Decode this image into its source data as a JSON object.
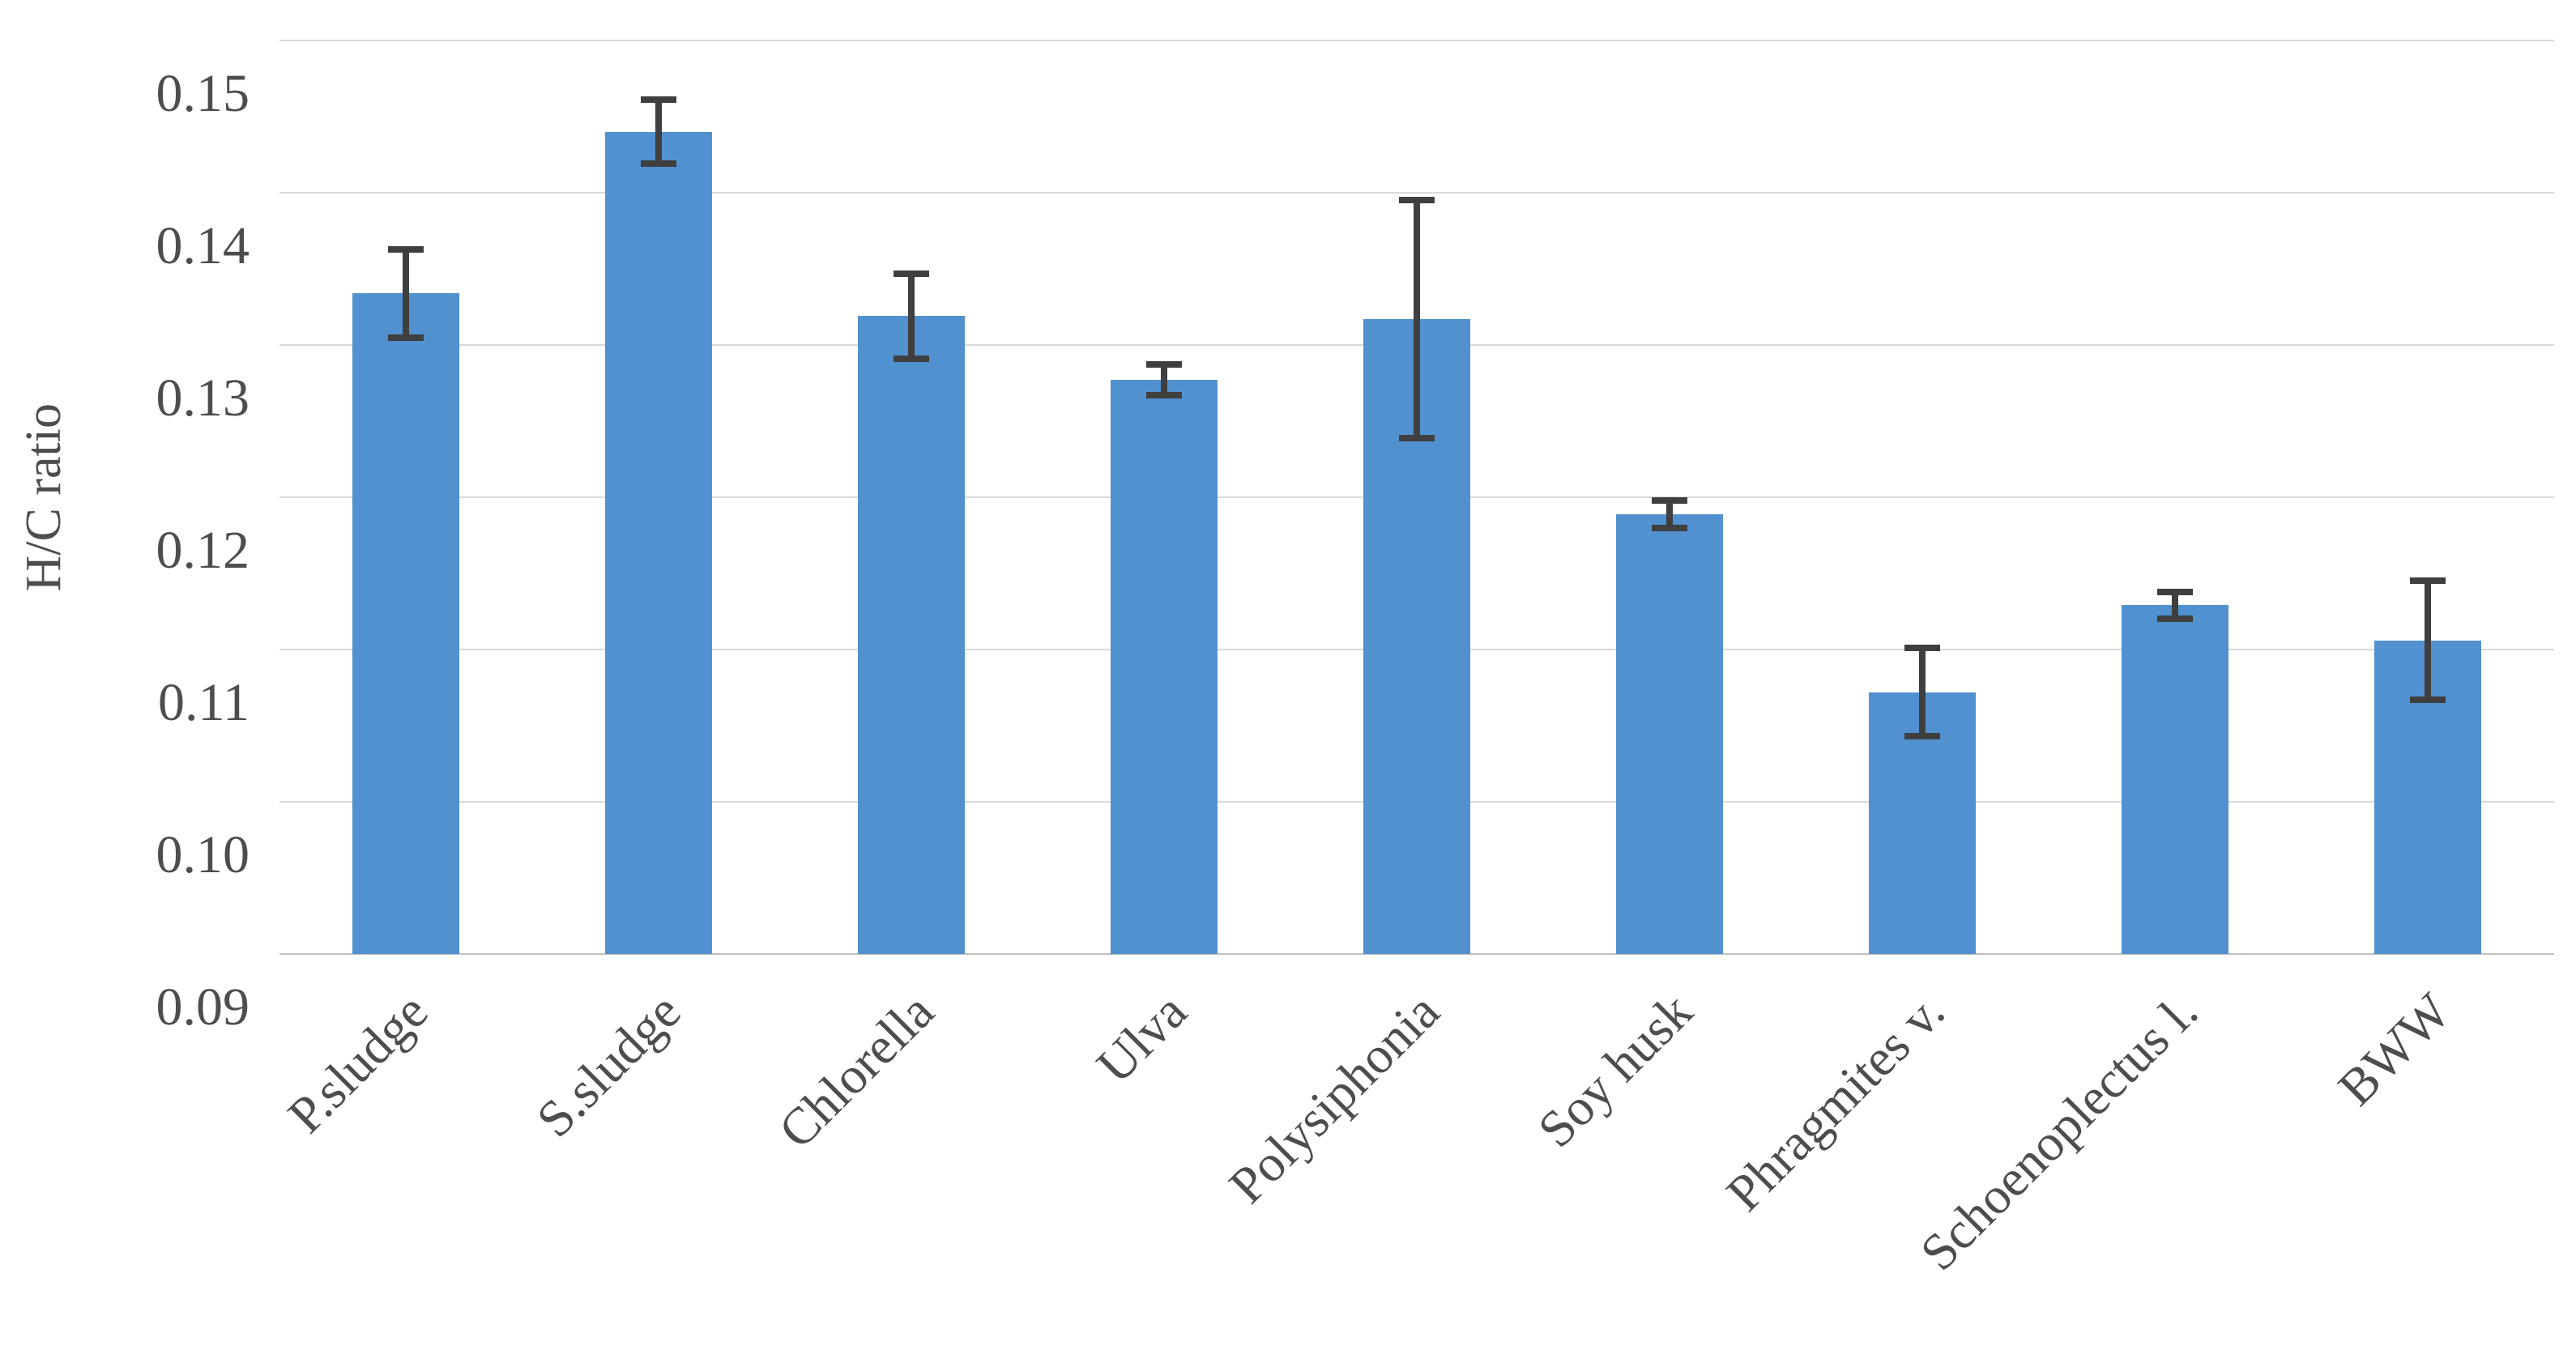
{
  "chart_data": {
    "type": "bar",
    "title": "",
    "xlabel": "",
    "ylabel": "H/C ratio",
    "categories": [
      "P.sludge",
      "S.sludge",
      "Chlorella",
      "Ulva",
      "Polysiphonia",
      "Soy husk",
      "Phragmites v.",
      "Schoenoplectus l.",
      "BWW"
    ],
    "values": [
      0.1334,
      0.144,
      0.1319,
      0.1277,
      0.1317,
      0.1189,
      0.1072,
      0.1129,
      0.1106
    ],
    "error_bars": [
      0.0029,
      0.0021,
      0.0028,
      0.001,
      0.0078,
      0.0009,
      0.0029,
      0.0009,
      0.0039
    ],
    "ylim": [
      0.09,
      0.15
    ],
    "y_ticks": [
      "0.15",
      "0.14",
      "0.13",
      "0.12",
      "0.11",
      "0.10",
      "0.09"
    ],
    "grid": true,
    "legend": false,
    "bar_color": "#5291cf",
    "error_color": "#3f3f3f",
    "gridline_color": "#d9d9d9",
    "baseline_color": "#c2c0c0",
    "text_color": "#4d4d4d"
  }
}
